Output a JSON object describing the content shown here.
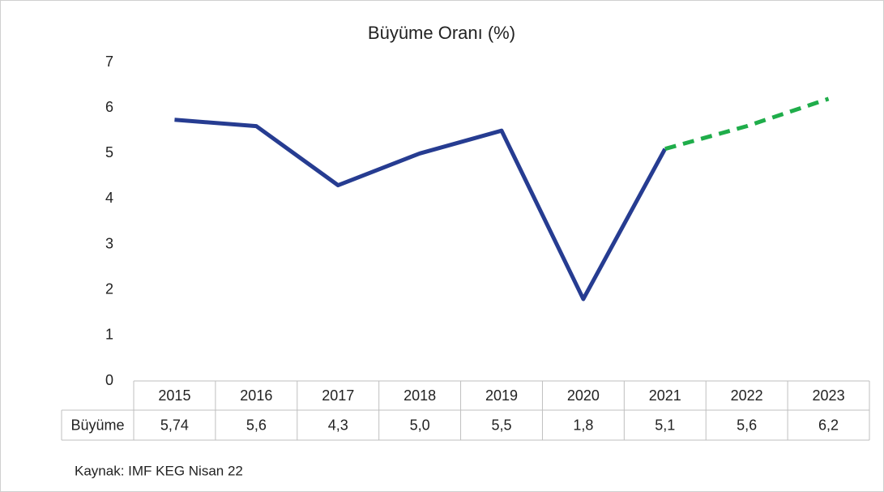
{
  "chart_data": {
    "type": "line",
    "title": "Büyüme Oranı (%)",
    "categories": [
      "2015",
      "2016",
      "2017",
      "2018",
      "2019",
      "2020",
      "2021",
      "2022",
      "2023"
    ],
    "series": [
      {
        "name": "Büyüme",
        "color": "#263c91",
        "values": [
          5.74,
          5.6,
          4.3,
          5.0,
          5.5,
          1.8,
          5.1,
          5.6,
          6.2
        ],
        "value_labels": [
          "5,74",
          "5,6",
          "4,3",
          "5,0",
          "5,5",
          "1,8",
          "5,1",
          "5,6",
          "6,2"
        ]
      }
    ],
    "forecast": {
      "from": "2021",
      "color": "#1fad4a",
      "dashed": true
    },
    "ylim": [
      0,
      7
    ],
    "yticks": [
      0,
      1,
      2,
      3,
      4,
      5,
      6,
      7
    ],
    "grid": false,
    "source": "Kaynak: IMF KEG Nisan 22"
  }
}
